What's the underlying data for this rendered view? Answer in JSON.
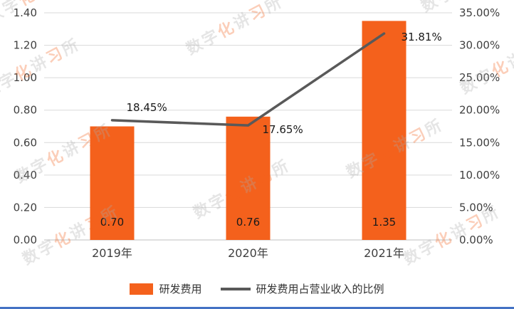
{
  "watermark": {
    "text": "数字化讲习所"
  },
  "chart_data": {
    "type": "bar+line",
    "categories": [
      "2019年",
      "2020年",
      "2021年"
    ],
    "series": [
      {
        "name": "研发费用",
        "type": "bar",
        "axis": "left",
        "values": [
          0.7,
          0.76,
          1.35
        ],
        "labels": [
          "0.70",
          "0.76",
          "1.35"
        ],
        "color": "#F4611C"
      },
      {
        "name": "研发费用占营业收入的比例",
        "type": "line",
        "axis": "right",
        "values": [
          18.45,
          17.65,
          31.81
        ],
        "labels": [
          "18.45%",
          "17.65%",
          "31.81%"
        ],
        "color": "#595959"
      }
    ],
    "left_axis": {
      "min": 0,
      "max": 1.4,
      "step": 0.2,
      "tick_labels": [
        "0.00",
        "0.20",
        "0.40",
        "0.60",
        "0.80",
        "1.00",
        "1.20",
        "1.40"
      ]
    },
    "right_axis": {
      "min": 0,
      "max": 35,
      "step": 5,
      "tick_labels": [
        "0.00%",
        "5.00%",
        "10.00%",
        "15.00%",
        "20.00%",
        "25.00%",
        "30.00%",
        "35.00%"
      ]
    },
    "grid": true,
    "legend_position": "bottom",
    "title": ""
  },
  "colors": {
    "bar": "#F4611C",
    "line": "#595959",
    "grid": "#D9D9D9",
    "axis_line": "#BFBFBF",
    "axis_text": "#404040",
    "label_text": "#1a1a1a",
    "bottom_border": "#4472C4",
    "watermark_gray": "#ABABAB",
    "watermark_accent": "#F4611C"
  }
}
